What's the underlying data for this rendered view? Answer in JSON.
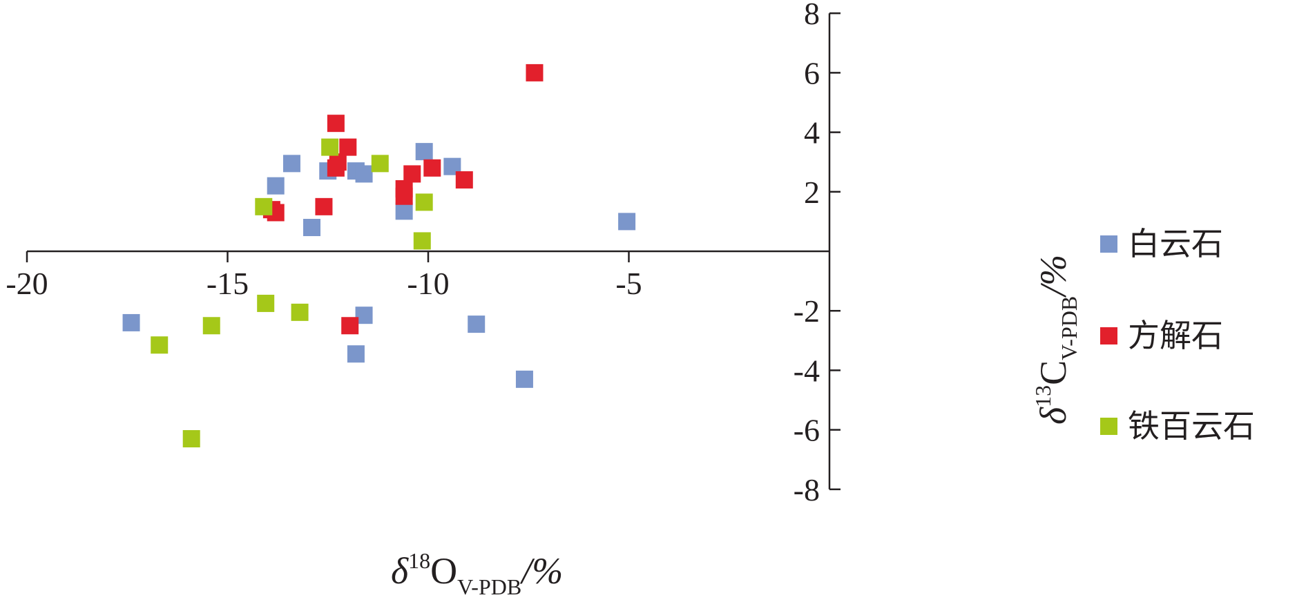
{
  "chart_data": {
    "type": "scatter",
    "title": "",
    "xlabel": {
      "italic": "δ",
      "sup": "18",
      "main": "O",
      "sub": "V-PDB",
      "suffix": "/%"
    },
    "ylabel": {
      "italic": "δ",
      "sup": "13",
      "main": "C",
      "sub": "V-PDB",
      "suffix": "/%"
    },
    "xlim": [
      -20,
      0
    ],
    "ylim": [
      -8,
      8
    ],
    "xticks": [
      "-20",
      "-15",
      "-10",
      "-5"
    ],
    "yticks": [
      "8",
      "6",
      "4",
      "2",
      "-2",
      "-4",
      "-6",
      "-8"
    ],
    "grid": false,
    "legend_position": "right",
    "series": [
      {
        "name": "白云石",
        "color": "#7b96cb",
        "points": [
          [
            -17.4,
            -2.4
          ],
          [
            -13.8,
            2.2
          ],
          [
            -13.4,
            2.95
          ],
          [
            -12.9,
            0.8
          ],
          [
            -12.5,
            2.7
          ],
          [
            -11.8,
            2.7
          ],
          [
            -11.6,
            2.6
          ],
          [
            -10.6,
            1.35
          ],
          [
            -10.1,
            3.35
          ],
          [
            -9.4,
            2.85
          ],
          [
            -5.05,
            1.0
          ],
          [
            -11.8,
            -3.45
          ],
          [
            -11.6,
            -2.15
          ],
          [
            -8.8,
            -2.45
          ],
          [
            -7.6,
            -4.3
          ]
        ]
      },
      {
        "name": "方解石",
        "color": "#e2202c",
        "points": [
          [
            -7.35,
            6.0
          ],
          [
            -12.3,
            4.3
          ],
          [
            -12.0,
            3.5
          ],
          [
            -12.25,
            3.0
          ],
          [
            -12.3,
            2.8
          ],
          [
            -10.6,
            2.1
          ],
          [
            -10.4,
            2.6
          ],
          [
            -10.6,
            1.85
          ],
          [
            -9.9,
            2.8
          ],
          [
            -9.1,
            2.4
          ],
          [
            -12.6,
            1.5
          ],
          [
            -13.9,
            1.4
          ],
          [
            -13.8,
            1.3
          ],
          [
            -11.95,
            -2.5
          ]
        ]
      },
      {
        "name": "铁百云石",
        "color": "#a5c819",
        "points": [
          [
            -12.45,
            3.5
          ],
          [
            -11.2,
            2.95
          ],
          [
            -14.1,
            1.5
          ],
          [
            -10.1,
            1.65
          ],
          [
            -10.15,
            0.35
          ],
          [
            -14.05,
            -1.75
          ],
          [
            -13.2,
            -2.05
          ],
          [
            -15.4,
            -2.5
          ],
          [
            -16.7,
            -3.15
          ],
          [
            -15.9,
            -6.3
          ]
        ]
      }
    ]
  }
}
